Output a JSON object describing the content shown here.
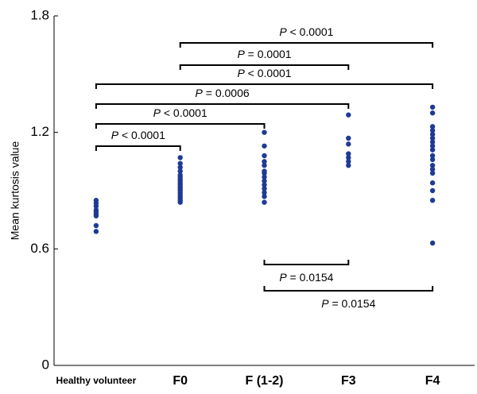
{
  "chart_data": {
    "type": "strip",
    "y_label": "Mean kurtosis value",
    "categories": [
      "Healthy volunteer",
      "F0",
      "F (1-2)",
      "F3",
      "F4"
    ],
    "color": "#1f3a93",
    "ylim": [
      0,
      1.8
    ],
    "yticks": [
      0,
      0.6,
      1.2,
      1.8
    ],
    "values": [
      [
        0.85,
        0.835,
        0.82,
        0.8,
        0.79,
        0.78,
        0.77,
        0.72,
        0.69
      ],
      [
        1.07,
        1.04,
        1.02,
        1.0,
        0.98,
        0.97,
        0.96,
        0.95,
        0.94,
        0.93,
        0.92,
        0.91,
        0.9,
        0.89,
        0.88,
        0.87,
        0.86,
        0.85,
        0.84
      ],
      [
        1.2,
        1.13,
        1.08,
        1.05,
        1.03,
        1.0,
        0.99,
        0.97,
        0.95,
        0.93,
        0.91,
        0.89,
        0.87,
        0.84
      ],
      [
        1.29,
        1.17,
        1.14,
        1.09,
        1.07,
        1.05,
        1.03
      ],
      [
        1.33,
        1.3,
        1.23,
        1.21,
        1.19,
        1.17,
        1.15,
        1.13,
        1.11,
        1.08,
        1.06,
        1.03,
        1.01,
        0.99,
        0.94,
        0.9,
        0.85,
        0.63
      ]
    ],
    "annotations": [
      {
        "from": "F0",
        "to": "F4",
        "label": "P < 0.0001"
      },
      {
        "from": "F0",
        "to": "F3",
        "label": "P = 0.0001"
      },
      {
        "from": "Healthy volunteer",
        "to": "F4",
        "label": "P < 0.0001"
      },
      {
        "from": "Healthy volunteer",
        "to": "F3",
        "label": "P = 0.0006"
      },
      {
        "from": "Healthy volunteer",
        "to": "F (1-2)",
        "label": "P < 0.0001"
      },
      {
        "from": "Healthy volunteer",
        "to": "F0",
        "label": "P < 0.0001"
      },
      {
        "from": "F (1-2)",
        "to": "F3",
        "label": "P = 0.0154"
      },
      {
        "from": "F (1-2)",
        "to": "F4",
        "label": "P = 0.0154"
      }
    ]
  }
}
